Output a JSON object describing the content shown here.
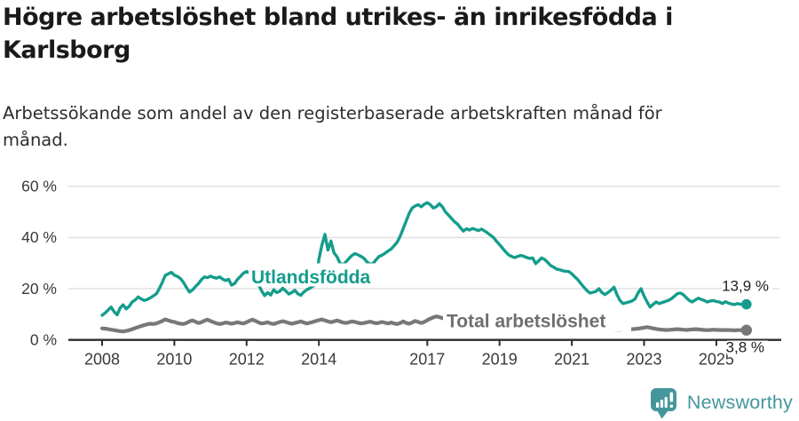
{
  "chart_data": {
    "type": "line",
    "title": "Högre arbetslöshet bland utrikes- än inrikesfödda i Karlsborg",
    "title_lines": [
      "Högre arbetslöshet bland utrikes- än inrikesfödda i",
      "Karlsborg"
    ],
    "subtitle": "Arbetssökande som andel av den registerbaserade arbetskraften månad för månad.",
    "subtitle_lines": [
      "Arbetssökande som andel av den registerbaserade arbetskraften månad för",
      "månad."
    ],
    "unit": "%",
    "grid": true,
    "legend_position": "inline-labels",
    "x_axis": {
      "start_year": 2008,
      "frequency": "monthly",
      "tick_labels": [
        "2008",
        "2010",
        "2012",
        "2014",
        "2017",
        "2019",
        "2021",
        "2023",
        "2025"
      ],
      "tick_years": [
        2008,
        2010,
        2012,
        2014,
        2017,
        2019,
        2021,
        2023,
        2025
      ]
    },
    "y_axis": {
      "tick_labels": [
        "0 %",
        "20 %",
        "40 %",
        "60 %"
      ],
      "tick_values": [
        0,
        20,
        40,
        60
      ],
      "range": [
        0,
        65
      ]
    },
    "series": [
      {
        "id": "utlandsfodda",
        "name": "Utlandsfödda",
        "color": "#149D8C",
        "label_color": "#149D8C",
        "end_label": "13,9 %",
        "end_value": 13.9,
        "start_year": 2008,
        "frequency": "monthly",
        "values": [
          9.6,
          10.5,
          11.7,
          12.8,
          11.0,
          9.8,
          12.5,
          13.7,
          12.1,
          13.1,
          14.8,
          15.6,
          16.8,
          16.0,
          15.4,
          15.8,
          16.4,
          17.2,
          18.0,
          20.0,
          22.5,
          25.2,
          25.8,
          26.4,
          25.3,
          24.8,
          24.0,
          22.5,
          20.5,
          18.7,
          19.5,
          20.8,
          22.0,
          23.5,
          24.6,
          24.3,
          24.9,
          24.4,
          24.1,
          24.6,
          23.8,
          23.2,
          23.7,
          21.4,
          22.0,
          23.7,
          24.9,
          26.1,
          26.7,
          26.1,
          25.2,
          23.7,
          21.4,
          19.1,
          17.3,
          18.5,
          17.5,
          19.6,
          18.5,
          19.0,
          20.2,
          19.1,
          17.9,
          18.5,
          19.4,
          18.0,
          17.4,
          18.7,
          19.6,
          20.2,
          21.0,
          21.6,
          31.5,
          37.0,
          41.2,
          35.1,
          38.6,
          34.0,
          32.5,
          30.0,
          29.3,
          30.5,
          31.8,
          33.0,
          33.7,
          33.2,
          32.6,
          31.8,
          30.4,
          29.5,
          29.9,
          31.3,
          32.6,
          33.1,
          33.9,
          34.7,
          35.5,
          36.8,
          38.2,
          40.5,
          43.5,
          46.5,
          49.5,
          51.5,
          52.3,
          52.8,
          52.0,
          53.0,
          53.6,
          52.8,
          51.5,
          52.0,
          53.2,
          52.0,
          50.0,
          48.8,
          47.5,
          46.2,
          45.3,
          43.8,
          42.5,
          43.4,
          42.9,
          43.5,
          43.1,
          42.7,
          43.3,
          42.6,
          41.8,
          40.9,
          40.0,
          38.5,
          37.2,
          35.8,
          34.4,
          33.2,
          32.6,
          32.1,
          32.6,
          33.0,
          32.7,
          32.2,
          31.8,
          32.0,
          29.8,
          30.9,
          32.0,
          31.4,
          30.2,
          29.0,
          28.4,
          27.6,
          27.4,
          27.0,
          26.8,
          26.7,
          25.8,
          24.6,
          23.5,
          22.0,
          20.6,
          19.3,
          18.3,
          18.6,
          18.9,
          20.0,
          18.5,
          17.7,
          18.5,
          19.4,
          20.6,
          17.7,
          15.4,
          14.2,
          14.5,
          14.8,
          15.2,
          16.0,
          18.3,
          20.0,
          17.1,
          14.8,
          12.8,
          13.9,
          14.8,
          14.2,
          14.6,
          15.0,
          15.4,
          16.0,
          17.0,
          18.0,
          18.3,
          17.7,
          16.5,
          15.4,
          14.8,
          15.6,
          16.3,
          15.8,
          15.4,
          14.8,
          15.2,
          15.4,
          15.0,
          14.8,
          14.2,
          14.9,
          14.4,
          14.0,
          13.8,
          14.2,
          13.9,
          14.0,
          13.9
        ]
      },
      {
        "id": "total",
        "name": "Total arbetslöshet",
        "color": "#787878",
        "label_color": "#6F6F6F",
        "end_label": "3,8 %",
        "end_value": 3.8,
        "start_year": 2008,
        "frequency": "monthly",
        "values": [
          4.5,
          4.4,
          4.2,
          4.0,
          3.8,
          3.6,
          3.4,
          3.3,
          3.5,
          3.8,
          4.2,
          4.6,
          5.0,
          5.4,
          5.8,
          6.1,
          6.3,
          6.2,
          6.4,
          6.9,
          7.4,
          8.0,
          7.6,
          7.2,
          7.0,
          6.6,
          6.3,
          6.2,
          6.6,
          7.2,
          7.6,
          7.1,
          6.6,
          6.9,
          7.5,
          7.9,
          7.4,
          6.9,
          6.5,
          6.2,
          6.4,
          6.8,
          6.6,
          6.3,
          6.6,
          6.9,
          6.6,
          6.4,
          6.9,
          7.5,
          7.9,
          7.4,
          6.8,
          6.4,
          6.6,
          6.9,
          6.4,
          6.2,
          6.6,
          7.0,
          7.3,
          7.0,
          6.6,
          6.3,
          6.6,
          6.9,
          7.2,
          6.8,
          6.4,
          6.7,
          7.0,
          7.4,
          7.7,
          8.0,
          7.6,
          7.2,
          6.9,
          7.2,
          7.6,
          7.2,
          6.8,
          6.6,
          6.9,
          7.2,
          7.0,
          6.7,
          6.4,
          6.6,
          6.9,
          7.1,
          6.8,
          6.5,
          6.7,
          7.0,
          6.7,
          6.4,
          6.8,
          6.4,
          6.2,
          6.6,
          7.2,
          6.6,
          6.3,
          6.8,
          7.4,
          7.0,
          6.6,
          7.0,
          7.7,
          8.3,
          8.8,
          9.2,
          8.9,
          8.5,
          8.2,
          7.9,
          7.7,
          7.5,
          7.3,
          7.1,
          7.0,
          6.9,
          6.8,
          6.7,
          6.6,
          6.5,
          6.4,
          6.3,
          6.2,
          6.1,
          6.0,
          5.9,
          5.8,
          5.8,
          5.7,
          5.7,
          5.6,
          5.6,
          5.5,
          5.5,
          5.4,
          5.4,
          5.3,
          5.3,
          5.4,
          5.5,
          5.7,
          5.9,
          6.0,
          6.0,
          5.9,
          5.8,
          5.7,
          5.6,
          5.5,
          5.4,
          5.3,
          5.2,
          5.1,
          5.0,
          4.9,
          4.8,
          4.7,
          4.6,
          4.5,
          4.4,
          4.3,
          4.2,
          4.3,
          4.2,
          4.1,
          4.0,
          4.0,
          4.1,
          4.2,
          4.1,
          4.2,
          4.3,
          4.4,
          4.6,
          4.8,
          5.0,
          4.8,
          4.5,
          4.3,
          4.1,
          4.0,
          3.9,
          3.9,
          4.0,
          4.1,
          4.2,
          4.1,
          4.0,
          3.9,
          4.0,
          4.1,
          4.2,
          4.1,
          4.0,
          3.9,
          3.8,
          3.9,
          4.0,
          3.9,
          3.9,
          3.8,
          3.9,
          3.8,
          3.8,
          3.7,
          3.8,
          3.8,
          3.8,
          3.8
        ]
      }
    ]
  },
  "branding": {
    "wordmark": "Newsworthy",
    "color": "#45969B",
    "icon": "newsworthy-pin-barchart-icon"
  }
}
